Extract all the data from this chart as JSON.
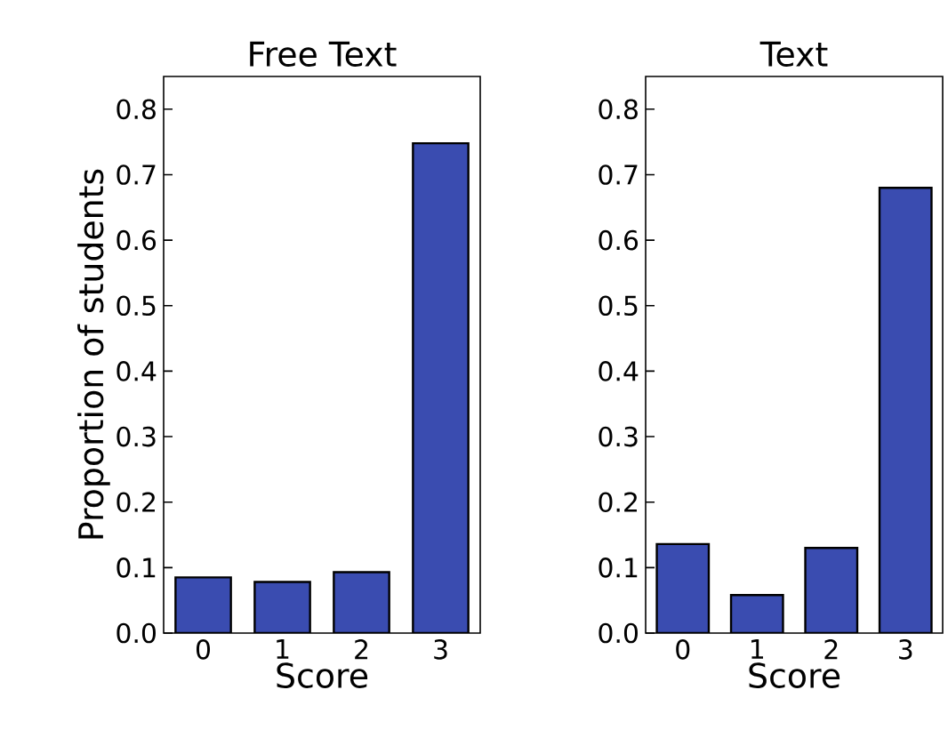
{
  "chart_data": [
    {
      "type": "bar",
      "title": "Free Text",
      "xlabel": "Score",
      "ylabel": "Proportion of students",
      "categories": [
        "0",
        "1",
        "2",
        "3"
      ],
      "values": [
        0.085,
        0.078,
        0.093,
        0.748
      ],
      "color": "#3a4cb0",
      "ylim": [
        0,
        0.85
      ],
      "yticks": [
        {
          "value": 0,
          "label": "0.0"
        },
        0.1,
        0.2,
        0.3,
        0.4,
        0.5,
        0.6,
        0.7,
        0.8
      ]
    },
    {
      "type": "bar",
      "title": "Text",
      "xlabel": "Score",
      "categories": [
        "0",
        "1",
        "2",
        "3"
      ],
      "values": [
        0.136,
        0.058,
        0.13,
        0.68
      ],
      "color": "#3a4cb0",
      "ylim": [
        0,
        0.85
      ],
      "yticks": [
        {
          "value": 0,
          "label": "0.0"
        },
        0.1,
        0.2,
        0.3,
        0.4,
        0.5,
        0.6,
        0.7,
        0.8
      ]
    }
  ]
}
